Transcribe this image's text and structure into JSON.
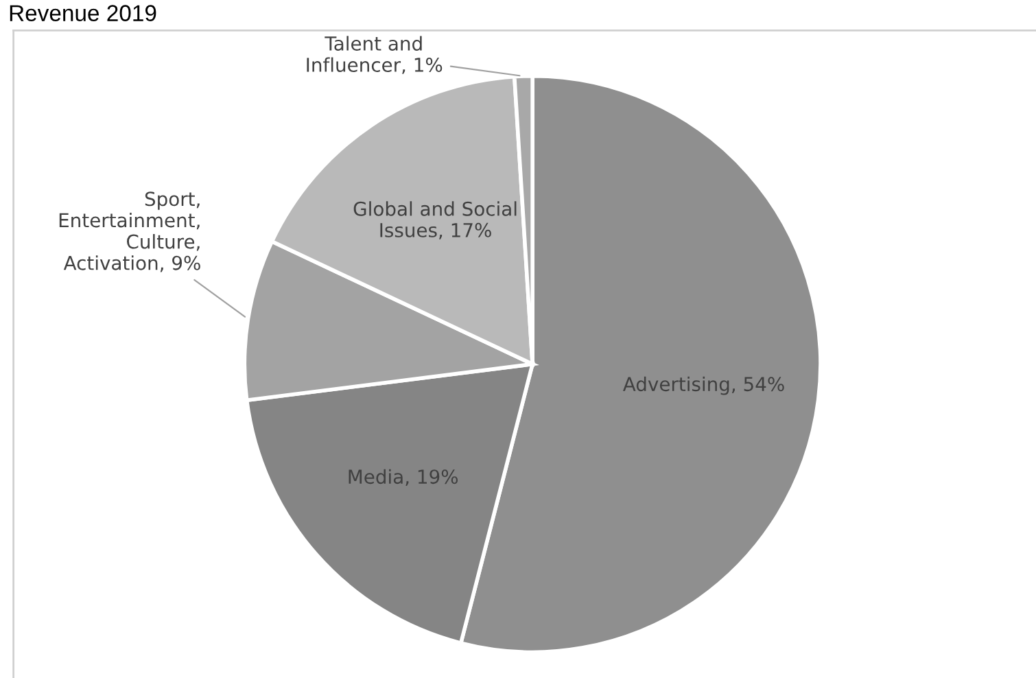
{
  "chart_data": {
    "type": "pie",
    "title": "Revenue 2019",
    "categories": [
      "Advertising",
      "Media",
      "Sport,\nEntertainment,\nCulture,\nActivation",
      "Global and Social\nIssues",
      "Talent and\nInfluencer"
    ],
    "values": [
      54,
      19,
      9,
      17,
      1
    ],
    "value_labels": [
      "54%",
      "19%",
      "9%",
      "17%",
      "1%"
    ],
    "colors": [
      "#8f8f8f",
      "#858585",
      "#a3a3a3",
      "#b9b9b9",
      "#a8a8a8"
    ],
    "legend": false
  }
}
